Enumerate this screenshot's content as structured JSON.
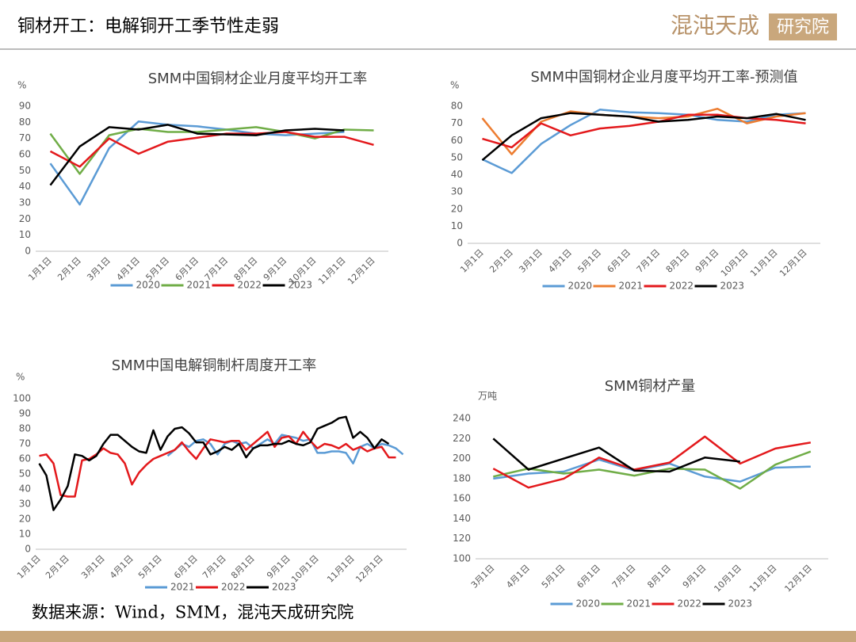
{
  "header": {
    "title": "铜材开工：电解铜开工季节性走弱",
    "logo": {
      "name": "混沌天成",
      "suffix": "研究院"
    }
  },
  "footer": {
    "source": "数据来源：Wind，SMM，混沌天成研究院"
  },
  "chart_data": [
    {
      "type": "line",
      "title": "SMM中国铜材企业月度平均开工率",
      "ylabel": "%",
      "categories": [
        "1月1日",
        "2月1日",
        "3月1日",
        "4月1日",
        "5月1日",
        "6月1日",
        "7月1日",
        "8月1日",
        "9月1日",
        "10月1日",
        "11月1日",
        "12月1日"
      ],
      "ylim": [
        0,
        90
      ],
      "yticks": [
        0,
        10,
        20,
        30,
        40,
        50,
        60,
        70,
        80,
        90
      ],
      "grid": false,
      "series": [
        {
          "name": "2020",
          "color": "#5b9bd5",
          "values": [
            54.5,
            29,
            64,
            80.5,
            78.5,
            77.5,
            75.5,
            73,
            72,
            73,
            74,
            null
          ]
        },
        {
          "name": "2021",
          "color": "#70ad47",
          "values": [
            73,
            48,
            72,
            76,
            74,
            74,
            75.5,
            77,
            74,
            70,
            75.5,
            75
          ]
        },
        {
          "name": "2022",
          "color": "#e3191c",
          "values": [
            62,
            52.5,
            70,
            60.5,
            68,
            70.5,
            73,
            73,
            74,
            71,
            71,
            66
          ]
        },
        {
          "name": "2023",
          "color": "#000000",
          "values": [
            41,
            65,
            77,
            75.5,
            78.5,
            73,
            72.5,
            72,
            75,
            76,
            75,
            null
          ]
        }
      ]
    },
    {
      "type": "line",
      "title": "SMM中国铜材企业月度平均开工率-预测值",
      "ylabel": "%",
      "categories": [
        "1月1日",
        "2月1日",
        "3月1日",
        "4月1日",
        "5月1日",
        "6月1日",
        "7月1日",
        "8月1日",
        "9月1日",
        "10月1日",
        "11月1日",
        "12月1日"
      ],
      "ylim": [
        0,
        80
      ],
      "yticks": [
        0,
        10,
        20,
        30,
        40,
        50,
        60,
        70,
        80
      ],
      "grid": false,
      "series": [
        {
          "name": "2020",
          "color": "#5b9bd5",
          "values": [
            49,
            41,
            58,
            69,
            78,
            76.5,
            76,
            75,
            72,
            71,
            75,
            76
          ]
        },
        {
          "name": "2021",
          "color": "#ed7d31",
          "values": [
            73,
            52,
            71,
            77,
            75,
            74,
            73,
            74,
            78.5,
            70,
            74,
            76
          ]
        },
        {
          "name": "2022",
          "color": "#e3191c",
          "values": [
            61,
            56,
            70,
            63,
            67,
            68.5,
            71,
            75,
            75,
            73,
            72,
            70
          ]
        },
        {
          "name": "2023",
          "color": "#000000",
          "values": [
            48.5,
            63,
            73,
            76,
            75,
            74,
            71,
            72,
            74,
            73,
            75.5,
            72
          ]
        }
      ]
    },
    {
      "type": "line",
      "title": "SMM中国电解铜制杆周度开工率",
      "ylabel": "%",
      "categories": [
        "1月1日",
        null,
        null,
        null,
        "2月1日",
        null,
        null,
        null,
        null,
        "3月1日",
        null,
        null,
        null,
        "4月1日",
        null,
        null,
        null,
        "5月1日",
        null,
        null,
        null,
        null,
        "6月1日",
        null,
        null,
        null,
        "7月1日",
        null,
        null,
        null,
        "8月1日",
        null,
        null,
        null,
        null,
        "9月1日",
        null,
        null,
        null,
        "10月1日",
        null,
        null,
        null,
        null,
        "11月1日",
        null,
        null,
        null,
        "12月1日",
        null,
        null,
        null
      ],
      "ylim": [
        0,
        100
      ],
      "yticks": [
        0,
        10,
        20,
        30,
        40,
        50,
        60,
        70,
        80,
        90,
        100
      ],
      "grid": false,
      "series": [
        {
          "name": "2021",
          "color": "#5b9bd5",
          "values": [
            null,
            null,
            null,
            null,
            null,
            null,
            null,
            null,
            null,
            null,
            null,
            null,
            null,
            null,
            null,
            null,
            null,
            null,
            62,
            66,
            70,
            68,
            72,
            73,
            70,
            63,
            70,
            72,
            70,
            71,
            67,
            70,
            73,
            70,
            76,
            75,
            74,
            72,
            73,
            64,
            64,
            65,
            65,
            64,
            57,
            68,
            70,
            67,
            70,
            69,
            67,
            63
          ]
        },
        {
          "name": "2022",
          "color": "#e3191c",
          "values": [
            62,
            63,
            57,
            36,
            35,
            35,
            59,
            60,
            63,
            67,
            64,
            63,
            57,
            43,
            51,
            56,
            60,
            62,
            64,
            66,
            71,
            65,
            60,
            67,
            73,
            72,
            71,
            72,
            72,
            66,
            70,
            74,
            78,
            68,
            74,
            75,
            70,
            78,
            72,
            67,
            70,
            69,
            67,
            70,
            66,
            68,
            65,
            67,
            68,
            61,
            61,
            null
          ]
        },
        {
          "name": "2023",
          "color": "#000000",
          "values": [
            57,
            49,
            26,
            33,
            42,
            63,
            62,
            59,
            62,
            70,
            76,
            76,
            72,
            68,
            65,
            64,
            79,
            66,
            75,
            80,
            81,
            77,
            71,
            71,
            63,
            65,
            68,
            66,
            70,
            61,
            67,
            69,
            69,
            70,
            70,
            72,
            70,
            69,
            71,
            80,
            82,
            84,
            87,
            88,
            74,
            78,
            74,
            67,
            73,
            70,
            null,
            null
          ]
        }
      ]
    },
    {
      "type": "line",
      "title": "SMM铜材产量",
      "ylabel": "万吨",
      "categories": [
        "3月1日",
        "4月1日",
        "5月1日",
        "6月1日",
        "7月1日",
        "8月1日",
        "9月1日",
        "10月1日",
        "11月1日",
        "12月1日"
      ],
      "ylim": [
        100,
        240
      ],
      "yticks": [
        100,
        120,
        140,
        160,
        180,
        200,
        220,
        240
      ],
      "grid": false,
      "series": [
        {
          "name": "2020",
          "color": "#5b9bd5",
          "values": [
            180,
            185,
            187,
            199,
            188,
            195,
            182,
            177,
            191,
            192
          ]
        },
        {
          "name": "2021",
          "color": "#70ad47",
          "values": [
            182,
            190,
            185,
            189,
            183,
            190,
            189,
            170,
            194,
            207
          ]
        },
        {
          "name": "2022",
          "color": "#e3191c",
          "values": [
            190,
            171,
            180,
            201,
            189,
            196,
            222,
            195,
            210,
            216
          ]
        },
        {
          "name": "2023",
          "color": "#000000",
          "values": [
            220,
            189,
            200,
            211,
            188,
            187,
            201,
            197,
            null,
            null
          ]
        }
      ]
    }
  ]
}
